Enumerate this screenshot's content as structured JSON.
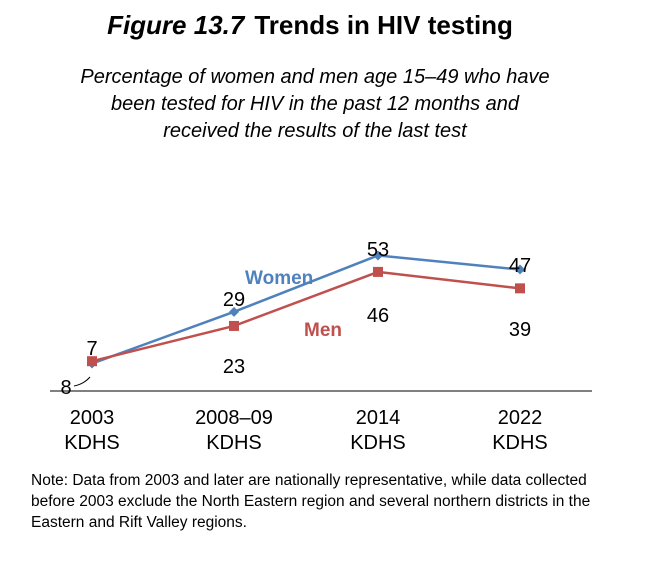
{
  "figure": {
    "number": "Figure 13.7",
    "title": "Trends in HIV testing",
    "subtitle": "Percentage of women and men age 15–49 who have been tested for HIV in the past 12 months and received the results of the last test"
  },
  "note": "Note: Data from 2003 and later are nationally representative, while data collected before 2003 exclude the North Eastern region and several northern districts in the Eastern and Rift Valley regions.",
  "chart_data": {
    "type": "line",
    "categories": [
      "2003 KDHS",
      "2008–09 KDHS",
      "2014 KDHS",
      "2022 KDHS"
    ],
    "category_lines": [
      [
        "2003",
        "KDHS"
      ],
      [
        "2008–09",
        "KDHS"
      ],
      [
        "2014",
        "KDHS"
      ],
      [
        "2022",
        "KDHS"
      ]
    ],
    "series": [
      {
        "name": "Women",
        "values": [
          7,
          29,
          53,
          47
        ],
        "color": "#4F81BD",
        "marker": "diamond"
      },
      {
        "name": "Men",
        "values": [
          8,
          23,
          46,
          39
        ],
        "color": "#C0504D",
        "marker": "square"
      }
    ],
    "ylim": [
      0,
      100
    ],
    "grid": false,
    "legend": "inline labels on lines"
  }
}
